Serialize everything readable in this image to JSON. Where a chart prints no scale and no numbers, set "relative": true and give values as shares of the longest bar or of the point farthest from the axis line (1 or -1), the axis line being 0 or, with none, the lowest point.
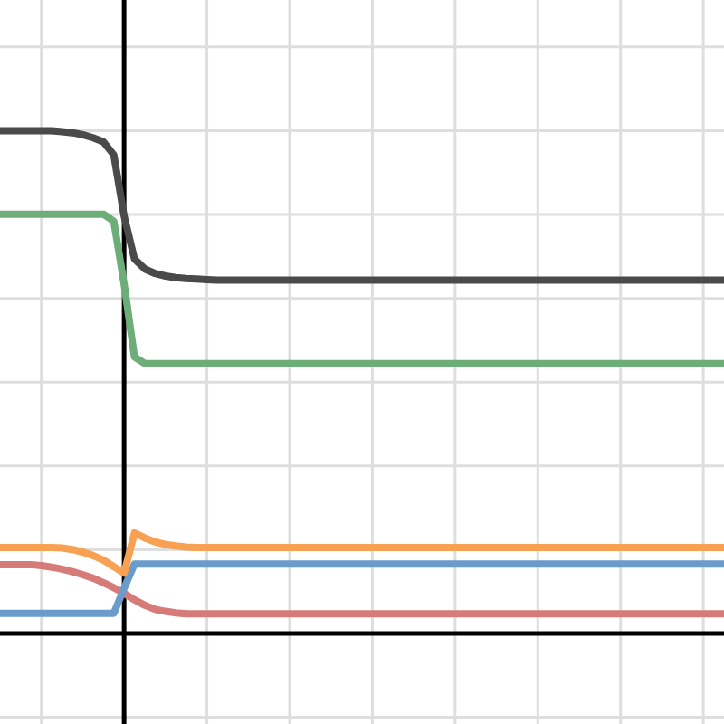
{
  "chart_data": {
    "type": "line",
    "relative": true,
    "grid": true,
    "tick_labels": false,
    "marker": "none",
    "line_style": "solid",
    "categories": [
      null,
      null,
      null,
      null,
      null,
      null,
      null,
      null,
      null,
      null,
      null,
      null,
      null,
      null,
      null,
      null,
      null,
      null,
      null,
      null,
      null,
      null,
      null,
      null,
      null,
      null,
      null,
      null,
      null,
      null,
      null,
      null,
      null,
      null,
      null,
      null,
      null,
      null,
      null,
      null,
      null,
      null,
      null,
      null,
      null,
      null,
      null,
      null,
      null,
      null,
      null,
      null,
      null,
      null,
      null,
      null,
      null,
      null,
      null,
      null,
      null,
      null,
      null,
      null,
      null,
      null,
      null,
      null,
      null,
      null,
      null
    ],
    "series": [
      {
        "color": "#4a4a4a",
        "values": [
          1,
          1,
          1,
          1,
          1,
          1,
          0.998,
          0.996,
          0.992,
          0.986,
          0.978,
          0.952,
          0.83,
          0.745,
          0.725,
          0.716,
          0.711,
          0.708,
          0.706,
          0.705,
          0.704,
          0.703,
          0.703,
          0.703,
          0.703,
          0.703,
          0.703,
          0.703,
          0.703,
          0.703,
          0.703,
          0.703,
          0.703,
          0.703,
          0.703,
          0.703,
          0.703,
          0.703,
          0.703,
          0.703,
          0.703,
          0.703,
          0.703,
          0.703,
          0.703,
          0.703,
          0.703,
          0.703,
          0.703,
          0.703,
          0.703,
          0.703,
          0.703,
          0.703,
          0.703,
          0.703,
          0.703,
          0.703,
          0.703,
          0.703,
          0.703,
          0.703,
          0.703,
          0.703,
          0.703,
          0.703,
          0.703,
          0.703,
          0.703,
          0.703,
          0.703
        ]
      },
      {
        "color": "#6cad78",
        "values": [
          0.834,
          0.834,
          0.834,
          0.834,
          0.834,
          0.834,
          0.834,
          0.834,
          0.834,
          0.834,
          0.834,
          0.82,
          0.695,
          0.55,
          0.537,
          0.537,
          0.537,
          0.537,
          0.537,
          0.537,
          0.537,
          0.537,
          0.537,
          0.537,
          0.537,
          0.537,
          0.537,
          0.537,
          0.537,
          0.537,
          0.537,
          0.537,
          0.537,
          0.537,
          0.537,
          0.537,
          0.537,
          0.537,
          0.537,
          0.537,
          0.537,
          0.537,
          0.537,
          0.537,
          0.537,
          0.537,
          0.537,
          0.537,
          0.537,
          0.537,
          0.537,
          0.537,
          0.537,
          0.537,
          0.537,
          0.537,
          0.537,
          0.537,
          0.537,
          0.537,
          0.537,
          0.537,
          0.537,
          0.537,
          0.537,
          0.537,
          0.537,
          0.537,
          0.537,
          0.537,
          0.537
        ]
      },
      {
        "color": "#d77b78",
        "values": [
          0.137,
          0.137,
          0.137,
          0.137,
          0.135,
          0.132,
          0.128,
          0.123,
          0.117,
          0.11,
          0.101,
          0.091,
          0.08,
          0.067,
          0.056,
          0.048,
          0.044,
          0.041,
          0.039,
          0.039,
          0.039,
          0.039,
          0.039,
          0.039,
          0.039,
          0.039,
          0.039,
          0.039,
          0.039,
          0.039,
          0.039,
          0.039,
          0.039,
          0.039,
          0.039,
          0.039,
          0.039,
          0.039,
          0.039,
          0.039,
          0.039,
          0.039,
          0.039,
          0.039,
          0.039,
          0.039,
          0.039,
          0.039,
          0.039,
          0.039,
          0.039,
          0.039,
          0.039,
          0.039,
          0.039,
          0.039,
          0.039,
          0.039,
          0.039,
          0.039,
          0.039,
          0.039,
          0.039,
          0.039,
          0.039,
          0.039,
          0.039,
          0.039,
          0.039,
          0.039,
          0.039
        ]
      },
      {
        "color": "#6a9bcb",
        "values": [
          0.04,
          0.04,
          0.04,
          0.04,
          0.04,
          0.04,
          0.04,
          0.04,
          0.04,
          0.04,
          0.04,
          0.04,
          0.09,
          0.138,
          0.138,
          0.138,
          0.138,
          0.138,
          0.138,
          0.138,
          0.138,
          0.138,
          0.138,
          0.138,
          0.138,
          0.138,
          0.138,
          0.138,
          0.138,
          0.138,
          0.138,
          0.138,
          0.138,
          0.138,
          0.138,
          0.138,
          0.138,
          0.138,
          0.138,
          0.138,
          0.138,
          0.138,
          0.138,
          0.138,
          0.138,
          0.138,
          0.138,
          0.138,
          0.138,
          0.138,
          0.138,
          0.138,
          0.138,
          0.138,
          0.138,
          0.138,
          0.138,
          0.138,
          0.138,
          0.138,
          0.138,
          0.138,
          0.138,
          0.138,
          0.138,
          0.138,
          0.138,
          0.138,
          0.138,
          0.138,
          0.138
        ]
      },
      {
        "color": "#f9a152",
        "values": [
          0.171,
          0.171,
          0.171,
          0.171,
          0.171,
          0.171,
          0.17,
          0.167,
          0.162,
          0.155,
          0.146,
          0.133,
          0.12,
          0.2,
          0.19,
          0.182,
          0.177,
          0.174,
          0.172,
          0.171,
          0.171,
          0.171,
          0.171,
          0.171,
          0.171,
          0.171,
          0.171,
          0.171,
          0.171,
          0.171,
          0.171,
          0.171,
          0.171,
          0.171,
          0.171,
          0.171,
          0.171,
          0.171,
          0.171,
          0.171,
          0.171,
          0.171,
          0.171,
          0.171,
          0.171,
          0.171,
          0.171,
          0.171,
          0.171,
          0.171,
          0.171,
          0.171,
          0.171,
          0.171,
          0.171,
          0.171,
          0.171,
          0.171,
          0.171,
          0.171,
          0.171,
          0.171,
          0.171,
          0.171,
          0.171,
          0.171,
          0.171,
          0.171,
          0.171,
          0.171,
          0.171
        ]
      }
    ]
  }
}
